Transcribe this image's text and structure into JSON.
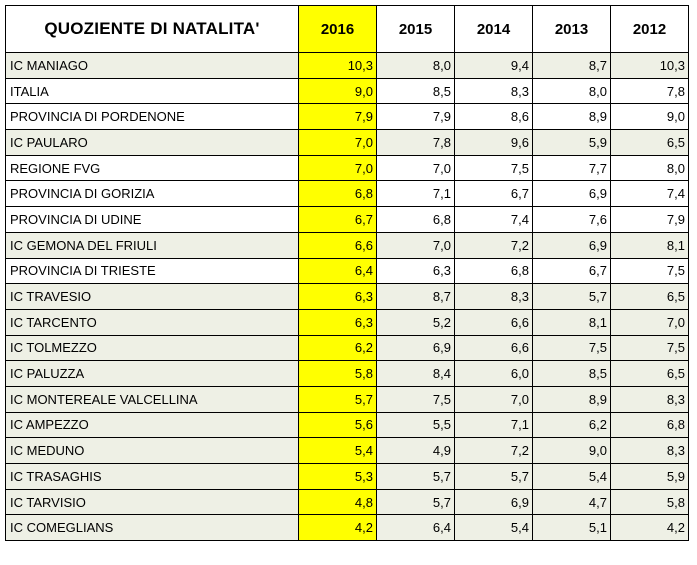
{
  "table": {
    "columns": [
      "QUOZIENTE  DI NATALITA'",
      "2016",
      "2015",
      "2014",
      "2013",
      "2012"
    ],
    "rows": [
      {
        "name": "IC MANIAGO",
        "values": [
          "10,3",
          "8,0",
          "9,4",
          "8,7",
          "10,3"
        ],
        "shaded": true
      },
      {
        "name": "ITALIA",
        "values": [
          "9,0",
          "8,5",
          "8,3",
          "8,0",
          "7,8"
        ],
        "shaded": false
      },
      {
        "name": "PROVINCIA DI PORDENONE",
        "values": [
          "7,9",
          "7,9",
          "8,6",
          "8,9",
          "9,0"
        ],
        "shaded": false
      },
      {
        "name": "IC PAULARO",
        "values": [
          "7,0",
          "7,8",
          "9,6",
          "5,9",
          "6,5"
        ],
        "shaded": true
      },
      {
        "name": "REGIONE FVG",
        "values": [
          "7,0",
          "7,0",
          "7,5",
          "7,7",
          "8,0"
        ],
        "shaded": false
      },
      {
        "name": "PROVINCIA DI GORIZIA",
        "values": [
          "6,8",
          "7,1",
          "6,7",
          "6,9",
          "7,4"
        ],
        "shaded": false
      },
      {
        "name": "PROVINCIA DI UDINE",
        "values": [
          "6,7",
          "6,8",
          "7,4",
          "7,6",
          "7,9"
        ],
        "shaded": false
      },
      {
        "name": "IC GEMONA DEL FRIULI",
        "values": [
          "6,6",
          "7,0",
          "7,2",
          "6,9",
          "8,1"
        ],
        "shaded": true
      },
      {
        "name": "PROVINCIA DI TRIESTE",
        "values": [
          "6,4",
          "6,3",
          "6,8",
          "6,7",
          "7,5"
        ],
        "shaded": false
      },
      {
        "name": "IC TRAVESIO",
        "values": [
          "6,3",
          "8,7",
          "8,3",
          "5,7",
          "6,5"
        ],
        "shaded": true
      },
      {
        "name": "IC TARCENTO",
        "values": [
          "6,3",
          "5,2",
          "6,6",
          "8,1",
          "7,0"
        ],
        "shaded": true
      },
      {
        "name": "IC TOLMEZZO",
        "values": [
          "6,2",
          "6,9",
          "6,6",
          "7,5",
          "7,5"
        ],
        "shaded": true
      },
      {
        "name": "IC PALUZZA",
        "values": [
          "5,8",
          "8,4",
          "6,0",
          "8,5",
          "6,5"
        ],
        "shaded": true
      },
      {
        "name": "IC MONTEREALE VALCELLINA",
        "values": [
          "5,7",
          "7,5",
          "7,0",
          "8,9",
          "8,3"
        ],
        "shaded": true
      },
      {
        "name": "IC AMPEZZO",
        "values": [
          "5,6",
          "5,5",
          "7,1",
          "6,2",
          "6,8"
        ],
        "shaded": true
      },
      {
        "name": "IC MEDUNO",
        "values": [
          "5,4",
          "4,9",
          "7,2",
          "9,0",
          "8,3"
        ],
        "shaded": true
      },
      {
        "name": "IC TRASAGHIS",
        "values": [
          "5,3",
          "5,7",
          "5,7",
          "5,4",
          "5,9"
        ],
        "shaded": true
      },
      {
        "name": "IC TARVISIO",
        "values": [
          "4,8",
          "5,7",
          "6,9",
          "4,7",
          "5,8"
        ],
        "shaded": true
      },
      {
        "name": "IC COMEGLIANS",
        "values": [
          "4,2",
          "6,4",
          "5,4",
          "5,1",
          "4,2"
        ],
        "shaded": true
      }
    ]
  },
  "colors": {
    "highlight_2016": "#ffff00",
    "ic_row_shade": "#eef0e5",
    "border": "#000000"
  }
}
